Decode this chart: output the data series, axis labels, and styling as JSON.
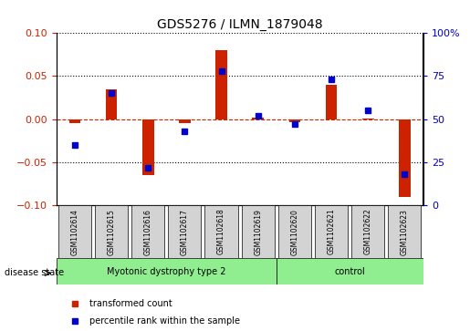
{
  "title": "GDS5276 / ILMN_1879048",
  "samples": [
    "GSM1102614",
    "GSM1102615",
    "GSM1102616",
    "GSM1102617",
    "GSM1102618",
    "GSM1102619",
    "GSM1102620",
    "GSM1102621",
    "GSM1102622",
    "GSM1102623"
  ],
  "red_values": [
    -0.005,
    0.035,
    -0.065,
    -0.005,
    0.08,
    0.002,
    -0.003,
    0.04,
    0.001,
    -0.09
  ],
  "blue_values_pct": [
    35,
    65,
    22,
    43,
    78,
    52,
    47,
    73,
    55,
    18
  ],
  "ylim_left": [
    -0.1,
    0.1
  ],
  "ylim_right": [
    0,
    100
  ],
  "yticks_left": [
    -0.1,
    -0.05,
    0.0,
    0.05,
    0.1
  ],
  "yticks_right": [
    0,
    25,
    50,
    75,
    100
  ],
  "ytick_labels_right": [
    "0",
    "25",
    "50",
    "75",
    "100%"
  ],
  "groups": [
    {
      "label": "Myotonic dystrophy type 2",
      "start": 0,
      "end": 6,
      "color": "#90EE90"
    },
    {
      "label": "control",
      "start": 6,
      "end": 10,
      "color": "#90EE90"
    }
  ],
  "disease_state_label": "disease state",
  "legend_items": [
    {
      "color": "#CC2200",
      "label": "transformed count"
    },
    {
      "color": "#0000CC",
      "label": "percentile rank within the sample"
    }
  ],
  "bar_width": 0.35,
  "red_color": "#CC2200",
  "blue_color": "#0000CC",
  "background_color": "#ffffff",
  "plot_bg_color": "#ffffff",
  "header_box_color": "#d3d3d3",
  "zero_line_color": "#CC2200",
  "grid_color": "#000000"
}
